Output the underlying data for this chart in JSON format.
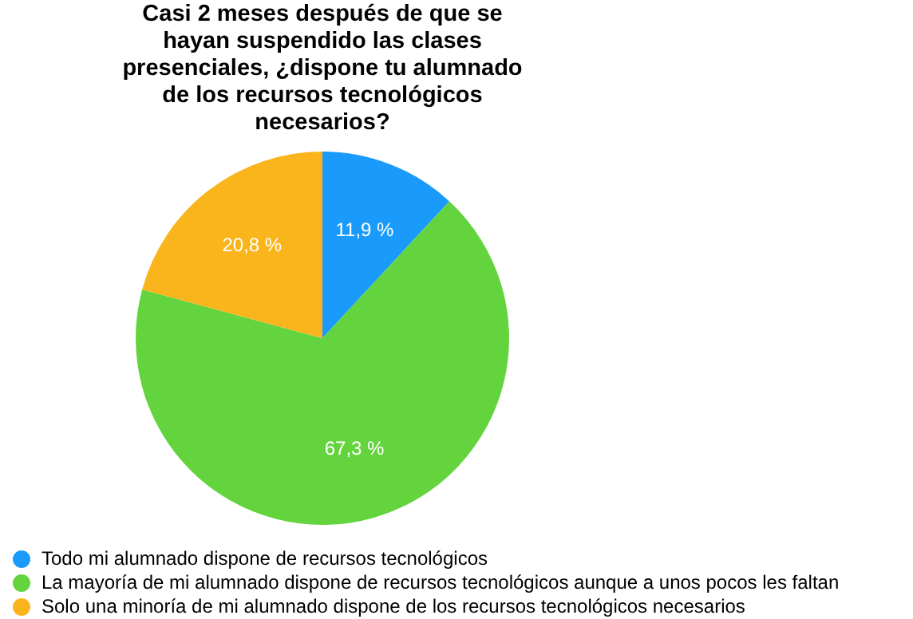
{
  "chart_data": {
    "type": "pie",
    "title": "Casi 2 meses después de que se hayan suspendido las clases presenciales, ¿dispone tu alumnado de los recursos tecnológicos necesarios?",
    "categories": [
      "Todo mi alumnado dispone de recursos tecnológicos",
      "La mayoría de mi alumnado dispone de recursos tecnológicos aunque a unos pocos les faltan",
      "Solo una minoría de mi alumnado dispone de los recursos tecnológicos necesarios"
    ],
    "values": [
      11.9,
      67.3,
      20.8
    ],
    "colors": [
      "#1a9bfc",
      "#63d43e",
      "#fab41c"
    ],
    "value_labels": [
      "11,9 %",
      "67,3 %",
      "20,8 %"
    ],
    "legend": "bottom"
  }
}
